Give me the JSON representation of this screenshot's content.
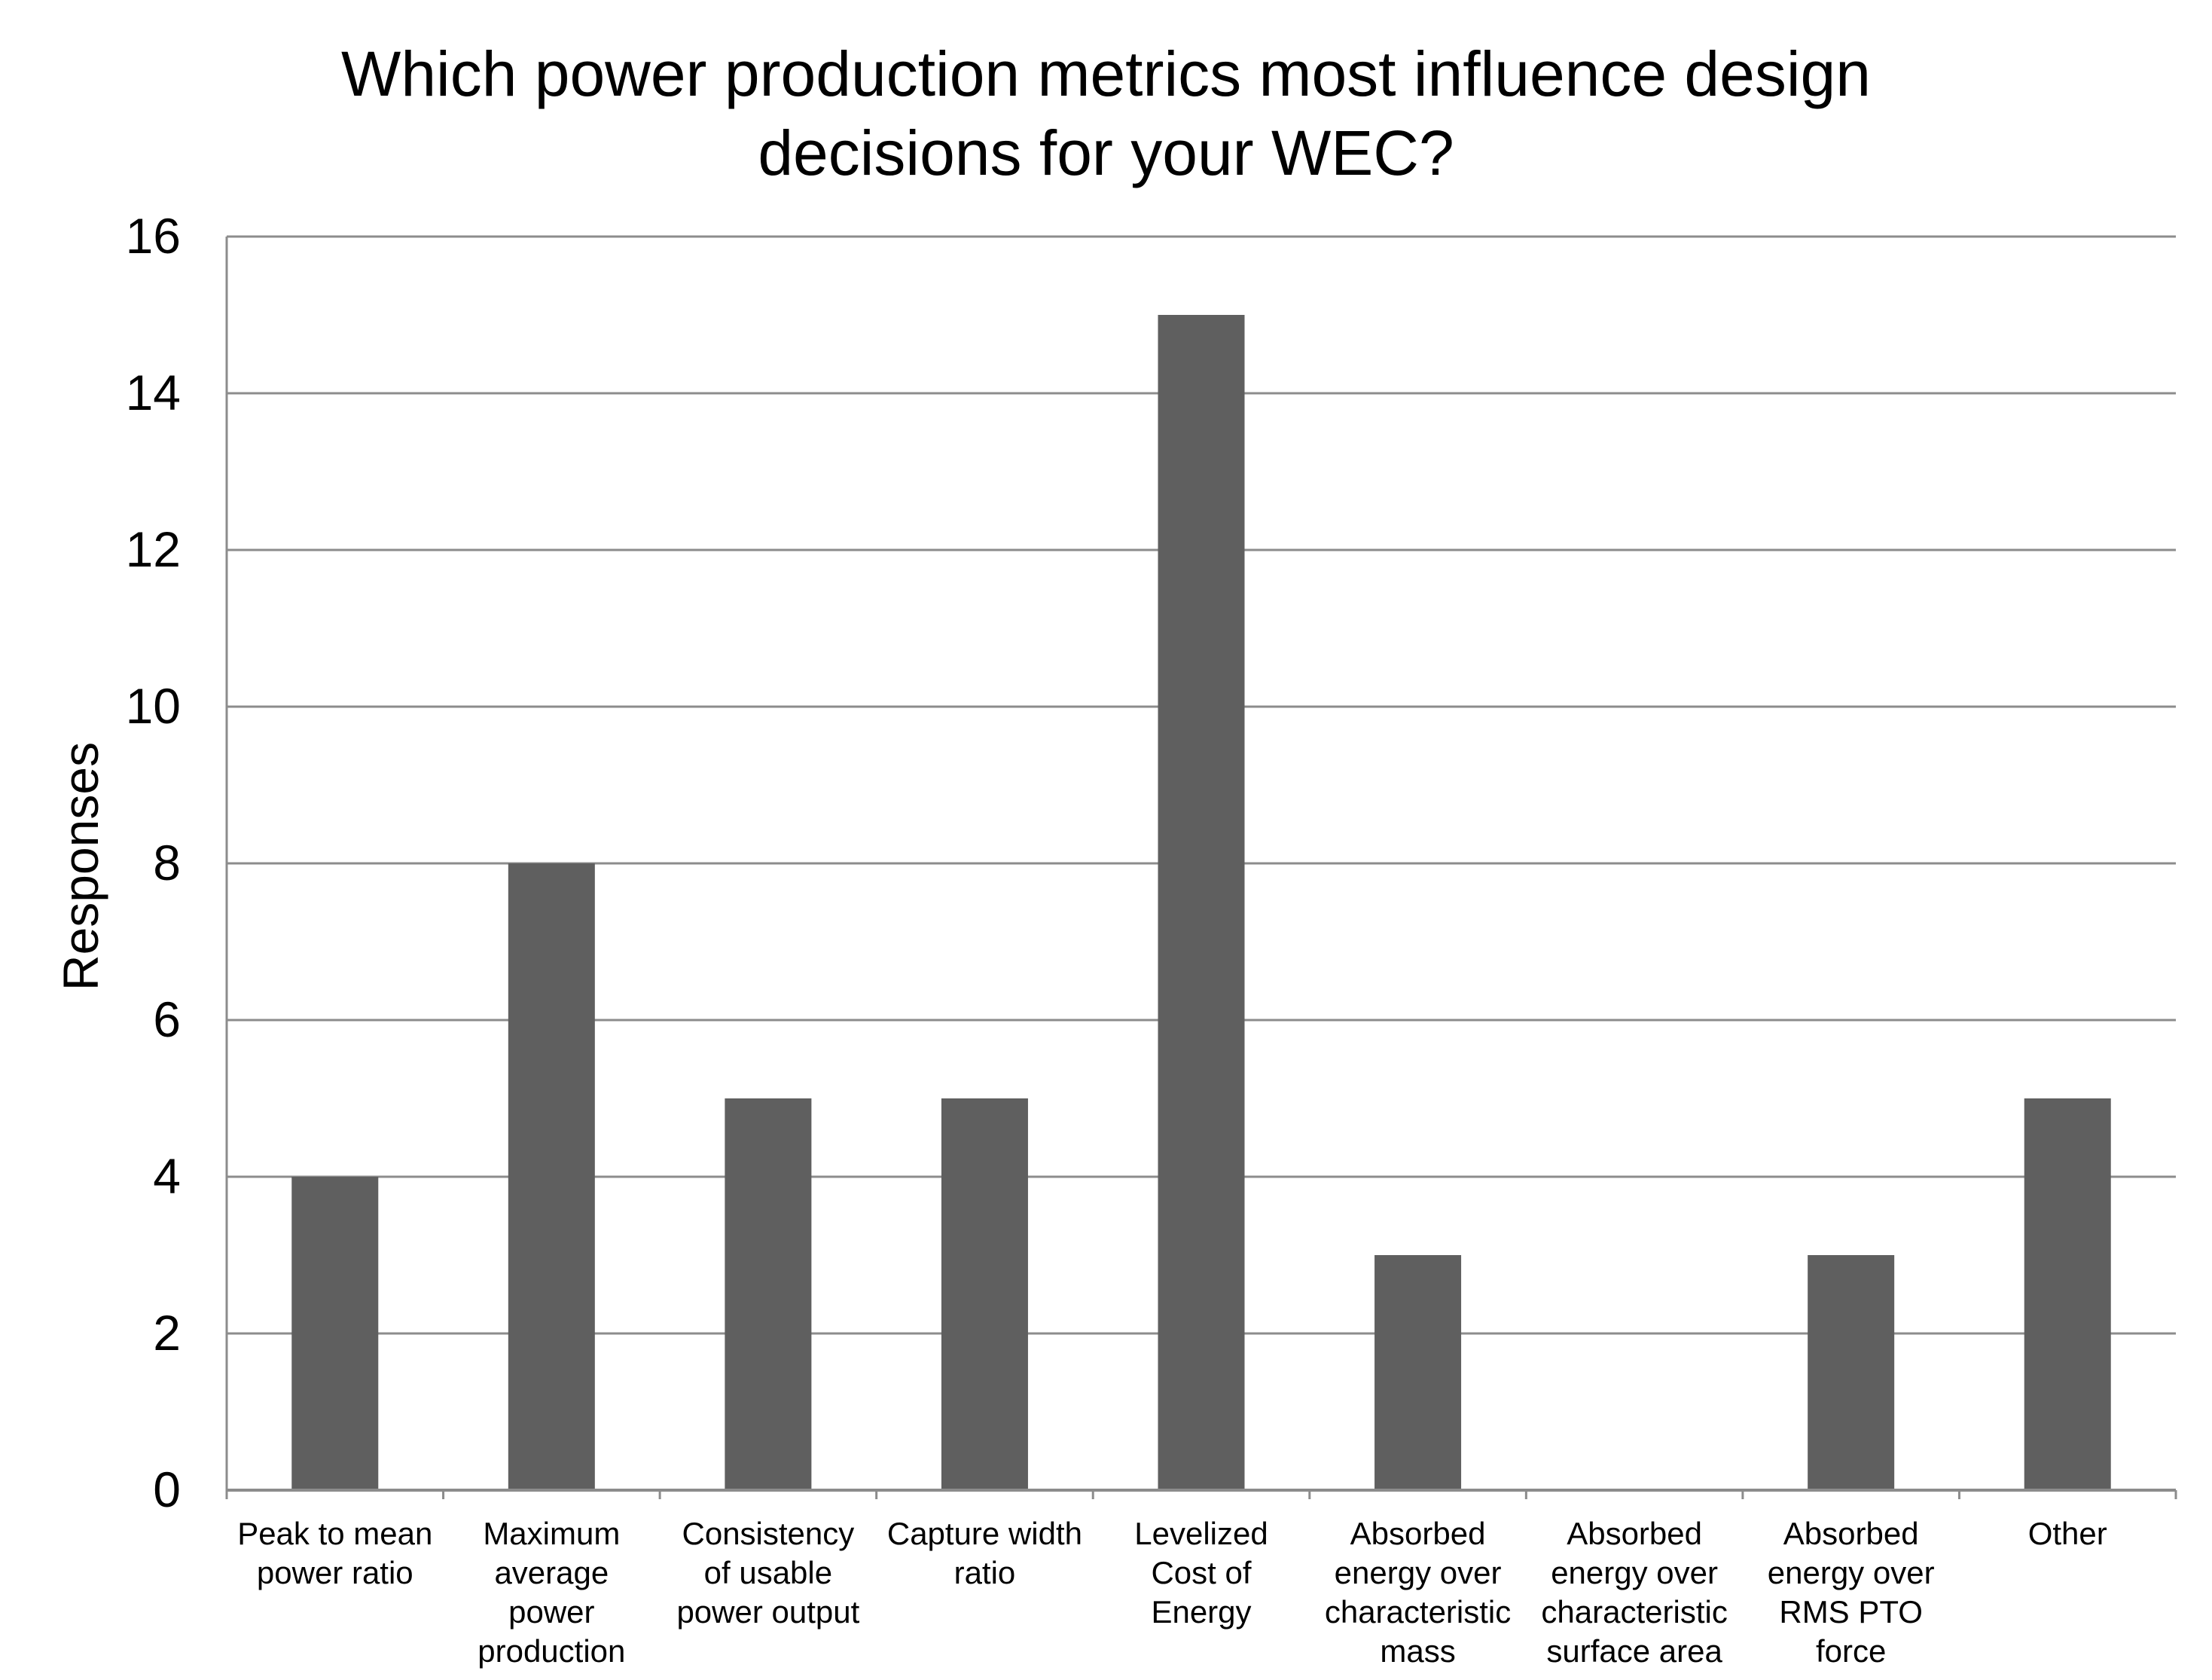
{
  "chart_data": {
    "type": "bar",
    "title_lines": [
      "Which power production metrics most influence design",
      "decisions for your WEC?"
    ],
    "xlabel": "",
    "ylabel": "Responses",
    "ylim": [
      0,
      16
    ],
    "yticks": [
      0,
      2,
      4,
      6,
      8,
      10,
      12,
      14,
      16
    ],
    "grid": true,
    "legend": "none",
    "bar_color": "#5f5f5f",
    "grid_color": "#8c8c8c",
    "categories": [
      [
        "Peak to mean",
        "power ratio"
      ],
      [
        "Maximum",
        "average",
        "power",
        "production"
      ],
      [
        "Consistency",
        "of usable",
        "power output"
      ],
      [
        "Capture width",
        "ratio"
      ],
      [
        "Levelized",
        "Cost of",
        "Energy"
      ],
      [
        "Absorbed",
        "energy over",
        "characteristic",
        "mass"
      ],
      [
        "Absorbed",
        "energy over",
        "characteristic",
        "surface area"
      ],
      [
        "Absorbed",
        "energy over",
        "RMS PTO",
        "force"
      ],
      [
        "Other"
      ]
    ],
    "values": [
      4,
      8,
      5,
      5,
      15,
      3,
      0,
      3,
      5
    ]
  }
}
